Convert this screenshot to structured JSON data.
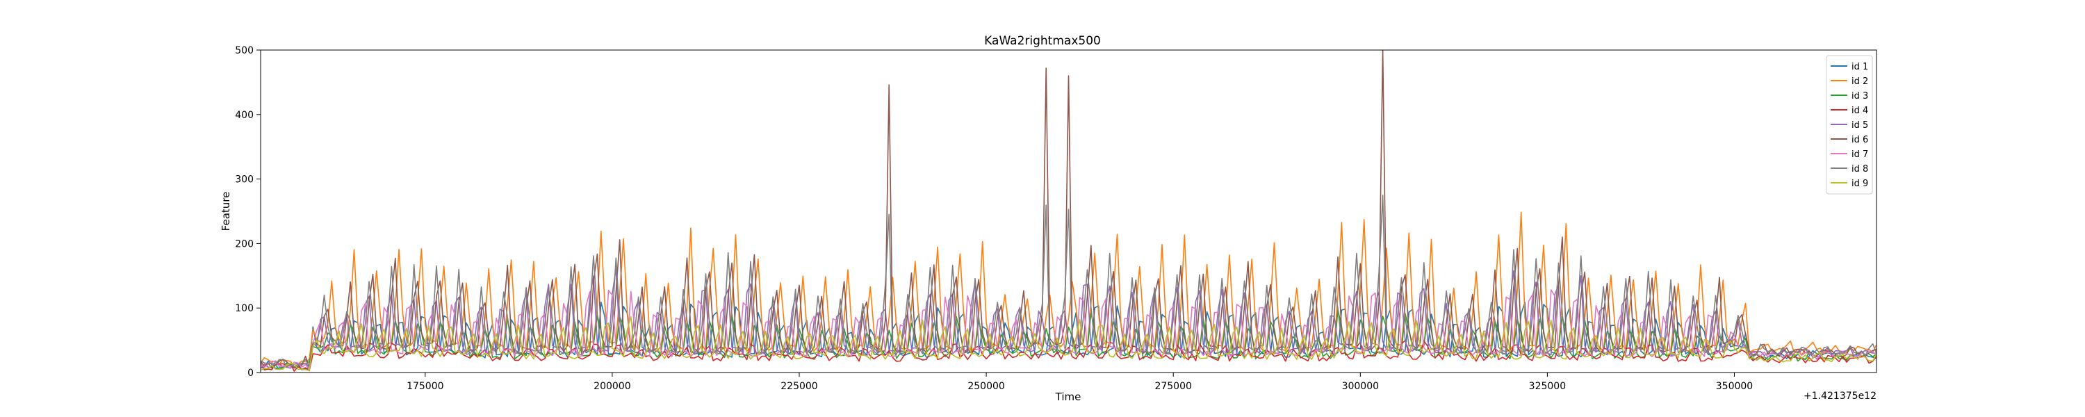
{
  "chart_data": {
    "type": "line",
    "title": "KaWa2rightmax500",
    "xlabel": "Time",
    "ylabel": "Feature",
    "x_offset_label": "+1.421375e12",
    "xlim": [
      153000,
      369000
    ],
    "ylim": [
      0,
      500
    ],
    "x_ticks": [
      175000,
      200000,
      225000,
      250000,
      275000,
      300000,
      325000,
      350000
    ],
    "x_tick_labels": [
      "175000",
      "200000",
      "225000",
      "250000",
      "275000",
      "300000",
      "325000",
      "350000"
    ],
    "y_ticks": [
      0,
      100,
      200,
      300,
      400,
      500
    ],
    "y_tick_labels": [
      "0",
      "100",
      "200",
      "300",
      "400",
      "500"
    ],
    "grid": false,
    "legend_position": "top-right",
    "segments": [
      {
        "start": 153000,
        "end": 160000,
        "base": 12,
        "amp": 10
      },
      {
        "start": 160000,
        "end": 165000,
        "base": 45,
        "amp": 90
      },
      {
        "start": 165000,
        "end": 180000,
        "base": 40,
        "amp": 150
      },
      {
        "start": 180000,
        "end": 186000,
        "base": 35,
        "amp": 120
      },
      {
        "start": 186000,
        "end": 197000,
        "base": 35,
        "amp": 150
      },
      {
        "start": 197000,
        "end": 203000,
        "base": 40,
        "amp": 190
      },
      {
        "start": 203000,
        "end": 210000,
        "base": 35,
        "amp": 120
      },
      {
        "start": 210000,
        "end": 220000,
        "base": 35,
        "amp": 180
      },
      {
        "start": 220000,
        "end": 240000,
        "base": 35,
        "amp": 120
      },
      {
        "start": 240000,
        "end": 250000,
        "base": 35,
        "amp": 170
      },
      {
        "start": 250000,
        "end": 262000,
        "base": 40,
        "amp": 100
      },
      {
        "start": 262000,
        "end": 268000,
        "base": 40,
        "amp": 190
      },
      {
        "start": 268000,
        "end": 275000,
        "base": 35,
        "amp": 150
      },
      {
        "start": 275000,
        "end": 290000,
        "base": 35,
        "amp": 160
      },
      {
        "start": 290000,
        "end": 297000,
        "base": 35,
        "amp": 110
      },
      {
        "start": 297000,
        "end": 303000,
        "base": 40,
        "amp": 180
      },
      {
        "start": 303000,
        "end": 310000,
        "base": 40,
        "amp": 170
      },
      {
        "start": 310000,
        "end": 318000,
        "base": 35,
        "amp": 110
      },
      {
        "start": 318000,
        "end": 330000,
        "base": 35,
        "amp": 190
      },
      {
        "start": 330000,
        "end": 340000,
        "base": 35,
        "amp": 140
      },
      {
        "start": 340000,
        "end": 349000,
        "base": 35,
        "amp": 120
      },
      {
        "start": 349000,
        "end": 352000,
        "base": 45,
        "amp": 60
      },
      {
        "start": 352000,
        "end": 369000,
        "base": 30,
        "amp": 12
      }
    ],
    "spikes": [
      {
        "x": 237000,
        "y": 446
      },
      {
        "x": 258000,
        "y": 472
      },
      {
        "x": 261000,
        "y": 460
      },
      {
        "x": 303000,
        "y": 500
      }
    ],
    "series": [
      {
        "name": "id 1",
        "color": "#1f77b4",
        "scale": 0.45,
        "phase": 0.0,
        "seed": 11
      },
      {
        "name": "id 2",
        "color": "#ff7f0e",
        "scale": 1.0,
        "phase": 0.6,
        "seed": 23
      },
      {
        "name": "id 3",
        "color": "#2ca02c",
        "scale": 0.35,
        "phase": 1.3,
        "seed": 37
      },
      {
        "name": "id 4",
        "color": "#d62728",
        "scale": 0.12,
        "phase": 2.1,
        "seed": 41
      },
      {
        "name": "id 5",
        "color": "#9467bd",
        "scale": 0.7,
        "phase": 3.0,
        "seed": 53
      },
      {
        "name": "id 6",
        "color": "#8c564b",
        "scale": 0.85,
        "phase": 1.8,
        "seed": 67
      },
      {
        "name": "id 7",
        "color": "#e377c2",
        "scale": 0.55,
        "phase": 4.2,
        "seed": 71
      },
      {
        "name": "id 8",
        "color": "#7f7f7f",
        "scale": 0.8,
        "phase": 2.6,
        "seed": 83
      },
      {
        "name": "id 9",
        "color": "#bcbd22",
        "scale": 0.3,
        "phase": 5.0,
        "seed": 97
      }
    ]
  }
}
